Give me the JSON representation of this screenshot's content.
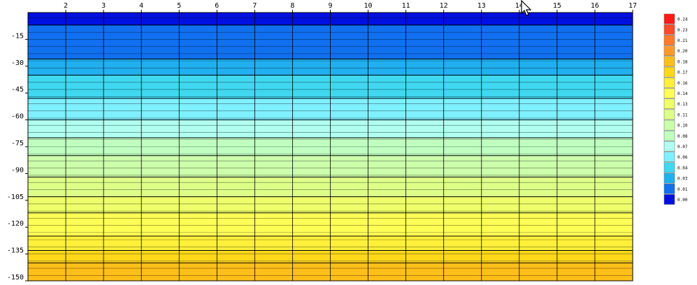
{
  "chart_data": {
    "type": "heatmap",
    "title": "",
    "xlabel": "",
    "ylabel": "",
    "x_ticks": [
      2,
      3,
      4,
      5,
      6,
      7,
      8,
      9,
      10,
      11,
      12,
      13,
      14,
      15,
      16,
      17
    ],
    "x_range": [
      1,
      17
    ],
    "y_ticks": [
      -15,
      -30,
      -45,
      -60,
      -75,
      -90,
      -105,
      -120,
      -135,
      -150
    ],
    "y_range": [
      0,
      -150
    ],
    "grid": true,
    "legend": {
      "position": "right",
      "levels": [
        0.24,
        0.23,
        0.21,
        0.2,
        0.18,
        0.17,
        0.16,
        0.14,
        0.13,
        0.11,
        0.1,
        0.08,
        0.07,
        0.06,
        0.04,
        0.03,
        0.01,
        0.0
      ],
      "colors": [
        "#ff1a1a",
        "#ff4a2a",
        "#ff7a2a",
        "#ff9a2a",
        "#ffbf1a",
        "#ffd81a",
        "#fff03a",
        "#ffff55",
        "#eeff6a",
        "#ddff88",
        "#ccffaa",
        "#bfffc0",
        "#b0fff0",
        "#7ff0ff",
        "#3fd8f0",
        "#20b0f0",
        "#1070f0",
        "#0010e0"
      ]
    },
    "bands": [
      {
        "depth": 0,
        "value": 0.0
      },
      {
        "depth": -7,
        "value": 0.01
      },
      {
        "depth": -26,
        "value": 0.03
      },
      {
        "depth": -35,
        "value": 0.04
      },
      {
        "depth": -48,
        "value": 0.06
      },
      {
        "depth": -60,
        "value": 0.07
      },
      {
        "depth": -70,
        "value": 0.08
      },
      {
        "depth": -80,
        "value": 0.1
      },
      {
        "depth": -92,
        "value": 0.11
      },
      {
        "depth": -103,
        "value": 0.13
      },
      {
        "depth": -112,
        "value": 0.14
      },
      {
        "depth": -125,
        "value": 0.16
      },
      {
        "depth": -133,
        "value": 0.17
      },
      {
        "depth": -140,
        "value": 0.18
      }
    ]
  }
}
